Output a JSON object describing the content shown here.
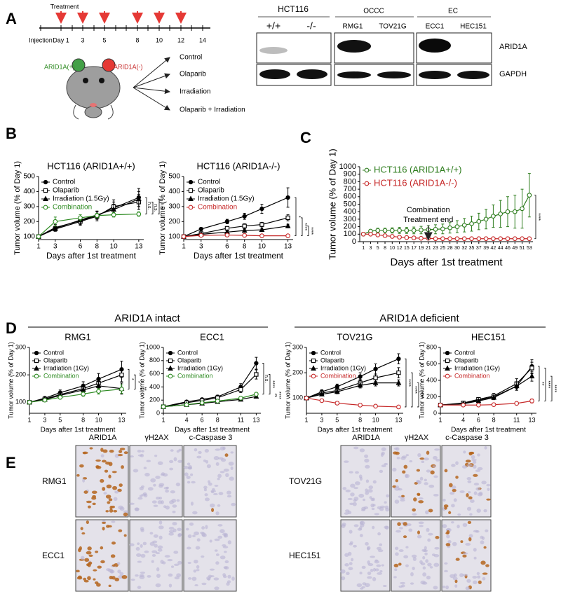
{
  "panels": [
    "A",
    "B",
    "C",
    "D",
    "E"
  ],
  "panel_a": {
    "timeline": {
      "treatment": "Treatment",
      "injection": "Injection",
      "days": [
        "Day 1",
        "3",
        "5",
        "8",
        "10",
        "12",
        "14"
      ]
    },
    "mouse": {
      "left": "ARID1A(+)",
      "right": "ARID1A(-)"
    },
    "arms": [
      "Control",
      "Olaparib",
      "Irradiation",
      "Olaparib + Irradiation"
    ],
    "blot": {
      "groups": [
        {
          "name": "HCT116",
          "lanes": [
            "+/+",
            "-/-"
          ]
        },
        {
          "name": "OCCC",
          "lanes": [
            "RMG1",
            "TOV21G"
          ]
        },
        {
          "name": "EC",
          "lanes": [
            "ECC1",
            "HEC151"
          ]
        }
      ],
      "rows": [
        "ARID1A",
        "GAPDH"
      ]
    }
  },
  "panel_d": {
    "groups": [
      "ARID1A intact",
      "ARID1A deficient"
    ]
  },
  "panel_e": {
    "left": {
      "columns": [
        "ARID1A",
        "γH2AX",
        "c-Caspase 3"
      ],
      "rows": [
        "RMG1",
        "ECC1"
      ]
    },
    "right": {
      "columns": [
        "ARID1A",
        "γH2AX",
        "c-Caspase 3"
      ],
      "rows": [
        "TOV21G",
        "HEC151"
      ]
    }
  },
  "chart_data": [
    {
      "type": "line",
      "title": "HCT116 (ARID1A+/+)",
      "xlabel": "Days after 1st treatment",
      "ylabel": "Tumor volume (% of Day 1)",
      "x": [
        1,
        3,
        6,
        8,
        10,
        13
      ],
      "xlim": [
        1,
        13.6
      ],
      "xticks": [
        1,
        3,
        6,
        8,
        10,
        13
      ],
      "ylim": [
        80,
        500
      ],
      "yticks": [
        100,
        200,
        300,
        400,
        500
      ],
      "legend": "upper left",
      "series": [
        {
          "name": "Control",
          "color": "#000000",
          "marker": "filled-circle",
          "values": [
            100,
            160,
            205,
            240,
            290,
            360
          ],
          "errors": [
            0,
            20,
            25,
            25,
            40,
            60
          ]
        },
        {
          "name": "Olaparib",
          "color": "#000000",
          "marker": "open-square",
          "values": [
            100,
            150,
            200,
            235,
            300,
            330
          ],
          "errors": [
            0,
            15,
            25,
            30,
            45,
            50
          ]
        },
        {
          "name": "Irradiation (1.5Gy)",
          "color": "#000000",
          "marker": "filled-triangle",
          "values": [
            100,
            155,
            210,
            245,
            280,
            350
          ],
          "errors": [
            0,
            15,
            20,
            25,
            35,
            50
          ]
        },
        {
          "name": "Combination",
          "color": "#2e8b22",
          "marker": "open-circle",
          "values": [
            100,
            200,
            225,
            240,
            245,
            250
          ],
          "errors": [
            0,
            30,
            20,
            15,
            15,
            15
          ]
        }
      ],
      "significance": [
        "n.s.",
        "n.s.",
        "n.s."
      ]
    },
    {
      "type": "line",
      "title": "HCT116 (ARID1A-/-)",
      "xlabel": "Days after 1st treatment",
      "ylabel": "Tumor volume (% of Day 1)",
      "x": [
        1,
        3,
        6,
        8,
        10,
        13
      ],
      "xlim": [
        1,
        13.6
      ],
      "xticks": [
        1,
        3,
        6,
        8,
        10,
        13
      ],
      "ylim": [
        80,
        500
      ],
      "yticks": [
        100,
        200,
        300,
        400,
        500
      ],
      "legend": "upper left",
      "series": [
        {
          "name": "Control",
          "color": "#000000",
          "marker": "filled-circle",
          "values": [
            100,
            150,
            200,
            235,
            285,
            360
          ],
          "errors": [
            0,
            10,
            15,
            20,
            30,
            65
          ]
        },
        {
          "name": "Olaparib",
          "color": "#000000",
          "marker": "open-square",
          "values": [
            100,
            120,
            155,
            170,
            180,
            225
          ],
          "errors": [
            0,
            8,
            12,
            15,
            15,
            20
          ]
        },
        {
          "name": "Irradiation (1.5Gy)",
          "color": "#000000",
          "marker": "filled-triangle",
          "values": [
            100,
            115,
            130,
            140,
            145,
            170
          ],
          "errors": [
            0,
            5,
            8,
            10,
            10,
            12
          ]
        },
        {
          "name": "Combination",
          "color": "#c62828",
          "marker": "open-circle",
          "values": [
            100,
            108,
            110,
            108,
            105,
            105
          ],
          "errors": [
            0,
            3,
            3,
            3,
            3,
            3
          ]
        }
      ],
      "significance": [
        "*",
        "****",
        "****"
      ]
    },
    {
      "type": "line",
      "xlabel": "Days after 1st treatment",
      "ylabel": "Tumor volume (% of Day 1)",
      "categories": [
        "1",
        "3",
        "5",
        "8",
        "10",
        "12",
        "15",
        "17",
        "19",
        "21",
        "23",
        "25",
        "28",
        "30",
        "32",
        "35",
        "37",
        "39",
        "42",
        "44",
        "46",
        "49",
        "51",
        "53"
      ],
      "ylim": [
        0,
        1000
      ],
      "yticks": [
        0,
        100,
        200,
        300,
        400,
        500,
        600,
        700,
        800,
        900,
        1000
      ],
      "legend": "upper left",
      "series": [
        {
          "name": "HCT116 (ARID1A+/+)",
          "color": "#2e7d1e",
          "marker": "open-circle",
          "values": [
            100,
            140,
            150,
            150,
            150,
            150,
            150,
            150,
            155,
            160,
            165,
            170,
            185,
            200,
            220,
            240,
            270,
            300,
            340,
            370,
            400,
            400,
            440,
            620
          ],
          "errors": [
            0,
            20,
            30,
            30,
            35,
            40,
            40,
            45,
            50,
            55,
            60,
            65,
            70,
            80,
            90,
            100,
            110,
            130,
            150,
            180,
            200,
            220,
            260,
            290
          ]
        },
        {
          "name": "HCT116 (ARID1A-/-)",
          "color": "#c62828",
          "marker": "open-circle",
          "values": [
            100,
            100,
            90,
            80,
            70,
            60,
            55,
            50,
            45,
            45,
            40,
            40,
            40,
            40,
            40,
            40,
            40,
            40,
            40,
            40,
            40,
            40,
            40,
            40
          ],
          "errors": [
            0,
            10,
            10,
            10,
            10,
            8,
            8,
            8,
            6,
            6,
            6,
            5,
            5,
            5,
            5,
            5,
            5,
            5,
            5,
            5,
            5,
            5,
            5,
            5
          ]
        }
      ],
      "annotation": {
        "lines": [
          "Combination",
          "Treatment end"
        ],
        "at": "21"
      },
      "significance": [
        "****"
      ]
    },
    {
      "type": "line",
      "title": "RMG1",
      "xlabel": "Days after 1st treatment",
      "ylabel": "Tumor volume (% of Day 1)",
      "x": [
        1,
        3,
        5,
        8,
        10,
        13
      ],
      "xlim": [
        1,
        13.6
      ],
      "xticks": [
        1,
        3,
        5,
        8,
        10,
        13
      ],
      "ylim": [
        60,
        300
      ],
      "yticks": [
        100,
        200,
        300
      ],
      "legend": "upper left",
      "series": [
        {
          "name": "Control",
          "color": "#000000",
          "marker": "filled-circle",
          "values": [
            100,
            115,
            135,
            160,
            185,
            220
          ],
          "errors": [
            0,
            5,
            10,
            15,
            20,
            30
          ]
        },
        {
          "name": "Olaparib",
          "color": "#000000",
          "marker": "open-square",
          "values": [
            100,
            112,
            128,
            150,
            170,
            200
          ],
          "errors": [
            0,
            5,
            8,
            12,
            18,
            25
          ]
        },
        {
          "name": "Irradiation (1Gy)",
          "color": "#000000",
          "marker": "filled-triangle",
          "values": [
            100,
            110,
            125,
            145,
            160,
            150
          ],
          "errors": [
            0,
            5,
            8,
            10,
            15,
            20
          ]
        },
        {
          "name": "Combination",
          "color": "#2e8b22",
          "marker": "open-circle",
          "values": [
            100,
            108,
            118,
            130,
            140,
            148
          ],
          "errors": [
            0,
            5,
            6,
            8,
            10,
            15
          ]
        }
      ],
      "significance": [
        "*",
        "*",
        "**"
      ]
    },
    {
      "type": "line",
      "title": "ECC1",
      "xlabel": "Days after 1st treatment",
      "ylabel": "Tumor volume (% of Day 1)",
      "x": [
        1,
        4,
        6,
        8,
        11,
        13
      ],
      "xlim": [
        1,
        13.6
      ],
      "xticks": [
        1,
        4,
        6,
        8,
        11,
        13
      ],
      "ylim": [
        0,
        1000
      ],
      "yticks": [
        0,
        200,
        400,
        600,
        800,
        1000
      ],
      "legend": "upper left",
      "series": [
        {
          "name": "Control",
          "color": "#000000",
          "marker": "filled-circle",
          "values": [
            100,
            175,
            210,
            250,
            400,
            760
          ],
          "errors": [
            0,
            15,
            20,
            25,
            50,
            90
          ]
        },
        {
          "name": "Olaparib",
          "color": "#000000",
          "marker": "open-square",
          "values": [
            100,
            160,
            195,
            235,
            360,
            590
          ],
          "errors": [
            0,
            15,
            20,
            25,
            45,
            70
          ]
        },
        {
          "name": "Irradiation (1Gy)",
          "color": "#000000",
          "marker": "filled-triangle",
          "values": [
            100,
            130,
            150,
            175,
            210,
            255
          ],
          "errors": [
            0,
            10,
            12,
            15,
            20,
            25
          ]
        },
        {
          "name": "Combination",
          "color": "#2e8b22",
          "marker": "open-circle",
          "values": [
            100,
            130,
            160,
            185,
            230,
            290
          ],
          "errors": [
            0,
            10,
            12,
            15,
            20,
            25
          ]
        }
      ],
      "significance": [
        "n.s.",
        "****",
        "****"
      ]
    },
    {
      "type": "line",
      "title": "TOV21G",
      "xlabel": "Days after 1st treatment",
      "ylabel": "Tumor volume (% of Day 1)",
      "x": [
        1,
        3,
        5,
        8,
        10,
        13
      ],
      "xlim": [
        1,
        13.6
      ],
      "xticks": [
        1,
        3,
        5,
        8,
        10,
        13
      ],
      "ylim": [
        40,
        300
      ],
      "yticks": [
        100,
        200,
        300
      ],
      "legend": "upper left",
      "series": [
        {
          "name": "Control",
          "color": "#000000",
          "marker": "filled-circle",
          "values": [
            100,
            125,
            145,
            185,
            215,
            255
          ],
          "errors": [
            0,
            8,
            10,
            15,
            20,
            20
          ]
        },
        {
          "name": "Olaparib",
          "color": "#000000",
          "marker": "open-square",
          "values": [
            100,
            120,
            130,
            160,
            180,
            200
          ],
          "errors": [
            0,
            8,
            10,
            15,
            15,
            20
          ]
        },
        {
          "name": "Irradiation (1Gy)",
          "color": "#000000",
          "marker": "filled-triangle",
          "values": [
            100,
            115,
            125,
            150,
            160,
            160
          ],
          "errors": [
            0,
            5,
            8,
            10,
            12,
            12
          ]
        },
        {
          "name": "Combination",
          "color": "#c62828",
          "marker": "open-circle",
          "values": [
            100,
            90,
            80,
            72,
            68,
            65
          ],
          "errors": [
            0,
            3,
            3,
            3,
            3,
            3
          ]
        }
      ],
      "significance": [
        "****",
        "****",
        "****"
      ]
    },
    {
      "type": "line",
      "title": "HEC151",
      "xlabel": "Days after 1st treatment",
      "ylabel": "Tumor volume (% of Day 1)",
      "x": [
        1,
        4,
        6,
        8,
        11,
        13
      ],
      "xlim": [
        1,
        13.6
      ],
      "xticks": [
        1,
        4,
        6,
        8,
        11,
        13
      ],
      "ylim": [
        0,
        800
      ],
      "yticks": [
        0,
        200,
        400,
        600,
        800
      ],
      "legend": "upper left",
      "series": [
        {
          "name": "Control",
          "color": "#000000",
          "marker": "filled-circle",
          "values": [
            100,
            120,
            160,
            200,
            330,
            570
          ],
          "errors": [
            0,
            10,
            20,
            30,
            50,
            80
          ]
        },
        {
          "name": "Olaparib",
          "color": "#000000",
          "marker": "open-square",
          "values": [
            100,
            125,
            170,
            210,
            360,
            550
          ],
          "errors": [
            0,
            10,
            20,
            30,
            60,
            70
          ]
        },
        {
          "name": "Irradiation (1Gy)",
          "color": "#000000",
          "marker": "filled-triangle",
          "values": [
            100,
            115,
            150,
            190,
            330,
            450
          ],
          "errors": [
            0,
            10,
            15,
            25,
            50,
            60
          ]
        },
        {
          "name": "Combination",
          "color": "#c62828",
          "marker": "open-circle",
          "values": [
            100,
            100,
            100,
            105,
            120,
            150
          ],
          "errors": [
            0,
            8,
            8,
            10,
            15,
            25
          ]
        }
      ],
      "significance": [
        "**",
        "****",
        "****"
      ]
    }
  ]
}
